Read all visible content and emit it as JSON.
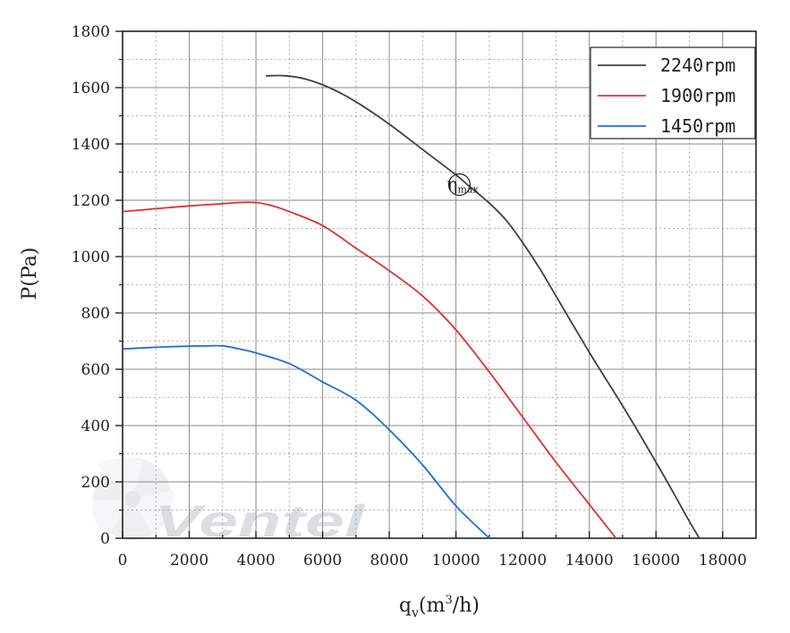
{
  "chart_data": {
    "type": "line",
    "xlabel": "q",
    "xlabel_sub": "v",
    "xlabel_unit_open": "(m",
    "xlabel_unit_sup": "3",
    "xlabel_unit_close": "/h)",
    "ylabel": "P(Pa)",
    "xlim": [
      0,
      19000
    ],
    "ylim": [
      0,
      1800
    ],
    "xticks": [
      0,
      2000,
      4000,
      6000,
      8000,
      10000,
      12000,
      14000,
      16000,
      18000
    ],
    "yticks": [
      0,
      200,
      400,
      600,
      800,
      1000,
      1200,
      1400,
      1600,
      1800
    ],
    "grid": true,
    "legend_position": "top-right",
    "series": [
      {
        "name": "2240rpm",
        "color": "#404040",
        "points": [
          [
            4300,
            1642
          ],
          [
            4900,
            1642
          ],
          [
            5500,
            1630
          ],
          [
            6200,
            1600
          ],
          [
            7000,
            1550
          ],
          [
            8000,
            1470
          ],
          [
            9000,
            1380
          ],
          [
            10000,
            1290
          ],
          [
            10400,
            1250
          ],
          [
            11000,
            1190
          ],
          [
            11500,
            1130
          ],
          [
            12000,
            1050
          ],
          [
            12500,
            960
          ],
          [
            13000,
            860
          ],
          [
            14000,
            660
          ],
          [
            15000,
            470
          ],
          [
            16000,
            270
          ],
          [
            16600,
            145
          ],
          [
            17000,
            60
          ],
          [
            17300,
            0
          ]
        ]
      },
      {
        "name": "1900rpm",
        "color": "#e03030",
        "points": [
          [
            0,
            1160
          ],
          [
            1000,
            1170
          ],
          [
            2000,
            1180
          ],
          [
            3000,
            1188
          ],
          [
            3500,
            1192
          ],
          [
            4000,
            1192
          ],
          [
            4500,
            1180
          ],
          [
            5000,
            1160
          ],
          [
            6000,
            1110
          ],
          [
            7000,
            1030
          ],
          [
            8000,
            950
          ],
          [
            9000,
            860
          ],
          [
            10000,
            740
          ],
          [
            11000,
            590
          ],
          [
            12000,
            430
          ],
          [
            13000,
            270
          ],
          [
            14000,
            120
          ],
          [
            14800,
            0
          ]
        ]
      },
      {
        "name": "1450rpm",
        "color": "#1f6fd6",
        "points": [
          [
            0,
            672
          ],
          [
            1000,
            678
          ],
          [
            2000,
            682
          ],
          [
            2500,
            683
          ],
          [
            3000,
            683
          ],
          [
            3500,
            672
          ],
          [
            4000,
            658
          ],
          [
            5000,
            620
          ],
          [
            6000,
            555
          ],
          [
            7000,
            490
          ],
          [
            8000,
            385
          ],
          [
            9000,
            260
          ],
          [
            10000,
            115
          ],
          [
            11000,
            0
          ]
        ]
      }
    ],
    "annotation": {
      "symbol": "η",
      "subscript": "max",
      "x": 10050,
      "y": 1265
    },
    "watermark": "Ventel"
  }
}
